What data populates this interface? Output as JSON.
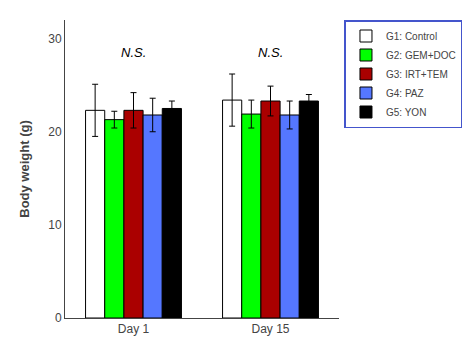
{
  "chart_data": {
    "type": "bar",
    "categories": [
      "Day 1",
      "Day 15"
    ],
    "series": [
      {
        "name": "G1: Control",
        "color": "#ffffff",
        "values": [
          22.3,
          23.4
        ],
        "errors": [
          2.8,
          2.8
        ]
      },
      {
        "name": "G2: GEM+DOC",
        "color": "#00ff00",
        "values": [
          21.3,
          21.9
        ],
        "errors": [
          0.9,
          1.5
        ]
      },
      {
        "name": "G3: IRT+TEM",
        "color": "#aa0000",
        "values": [
          22.3,
          23.3
        ],
        "errors": [
          1.9,
          1.6
        ]
      },
      {
        "name": "G4: PAZ",
        "color": "#5577ff",
        "values": [
          21.8,
          21.8
        ],
        "errors": [
          1.8,
          1.5
        ]
      },
      {
        "name": "G5: YON",
        "color": "#000000",
        "values": [
          22.5,
          23.3
        ],
        "errors": [
          0.8,
          0.7
        ]
      }
    ],
    "ylabel": "Body weight (g)",
    "ylim": [
      0,
      32
    ],
    "yticks": [
      0,
      10,
      20,
      30
    ],
    "annotations": [
      {
        "text": "N.S.",
        "x": "Day 1",
        "y": 27.5
      },
      {
        "text": "N.S.",
        "x": "Day 15",
        "y": 27.5
      }
    ],
    "legend": "upper right",
    "grid": false
  }
}
